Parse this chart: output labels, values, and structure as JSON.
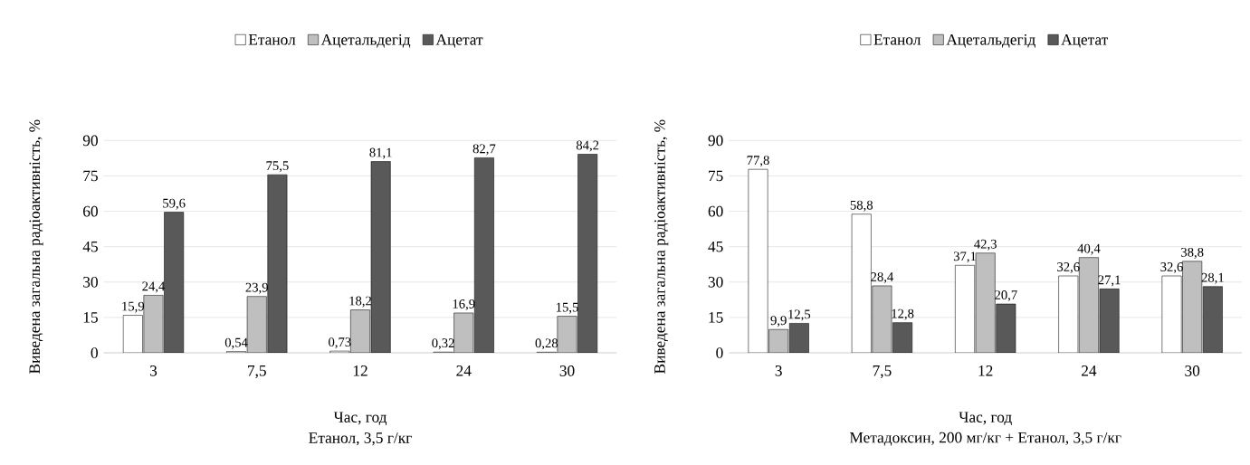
{
  "chart_data": [
    {
      "type": "bar",
      "title": "Етанол, 3,5 г/кг",
      "xlabel": "Час, год",
      "ylabel": "Виведена загальна радіоактивність, %",
      "categories": [
        "3",
        "7,5",
        "12",
        "24",
        "30"
      ],
      "ylim": [
        0,
        90
      ],
      "yticks": [
        0,
        15,
        30,
        45,
        60,
        75,
        90
      ],
      "grid": "y",
      "legend": "top",
      "series": [
        {
          "name": "Етанол",
          "color": "#ffffff",
          "values": [
            15.9,
            0.54,
            0.73,
            0.32,
            0.28
          ],
          "value_labels": [
            "15,9",
            "0,54",
            "0,73",
            "0,32",
            "0,28"
          ]
        },
        {
          "name": "Ацетальдегід",
          "color": "#bfbfbf",
          "values": [
            24.4,
            23.9,
            18.2,
            16.9,
            15.5
          ],
          "value_labels": [
            "24,4",
            "23,9",
            "18,2",
            "16,9",
            "15,5"
          ]
        },
        {
          "name": "Ацетат",
          "color": "#595959",
          "values": [
            59.6,
            75.5,
            81.1,
            82.7,
            84.2
          ],
          "value_labels": [
            "59,6",
            "75,5",
            "81,1",
            "82,7",
            "84,2"
          ]
        }
      ]
    },
    {
      "type": "bar",
      "title": "Метадоксин, 200 мг/кг + Етанол, 3,5 г/кг",
      "xlabel": "Час, год",
      "ylabel": "Виведена загальна радіоактивність, %",
      "categories": [
        "3",
        "7,5",
        "12",
        "24",
        "30"
      ],
      "ylim": [
        0,
        90
      ],
      "yticks": [
        0,
        15,
        30,
        45,
        60,
        75,
        90
      ],
      "grid": "y",
      "legend": "top",
      "series": [
        {
          "name": "Етанол",
          "color": "#ffffff",
          "values": [
            77.8,
            58.8,
            37.1,
            32.6,
            32.6
          ],
          "value_labels": [
            "77,8",
            "58,8",
            "37,1",
            "32,6",
            "32,6"
          ]
        },
        {
          "name": "Ацетальдегід",
          "color": "#bfbfbf",
          "values": [
            9.9,
            28.4,
            42.3,
            40.4,
            38.8
          ],
          "value_labels": [
            "9,9",
            "28,4",
            "42,3",
            "40,4",
            "38,8"
          ]
        },
        {
          "name": "Ацетат",
          "color": "#595959",
          "values": [
            12.5,
            12.8,
            20.7,
            27.1,
            28.1
          ],
          "value_labels": [
            "12,5",
            "12,8",
            "20,7",
            "27,1",
            "28,1"
          ]
        }
      ]
    }
  ]
}
